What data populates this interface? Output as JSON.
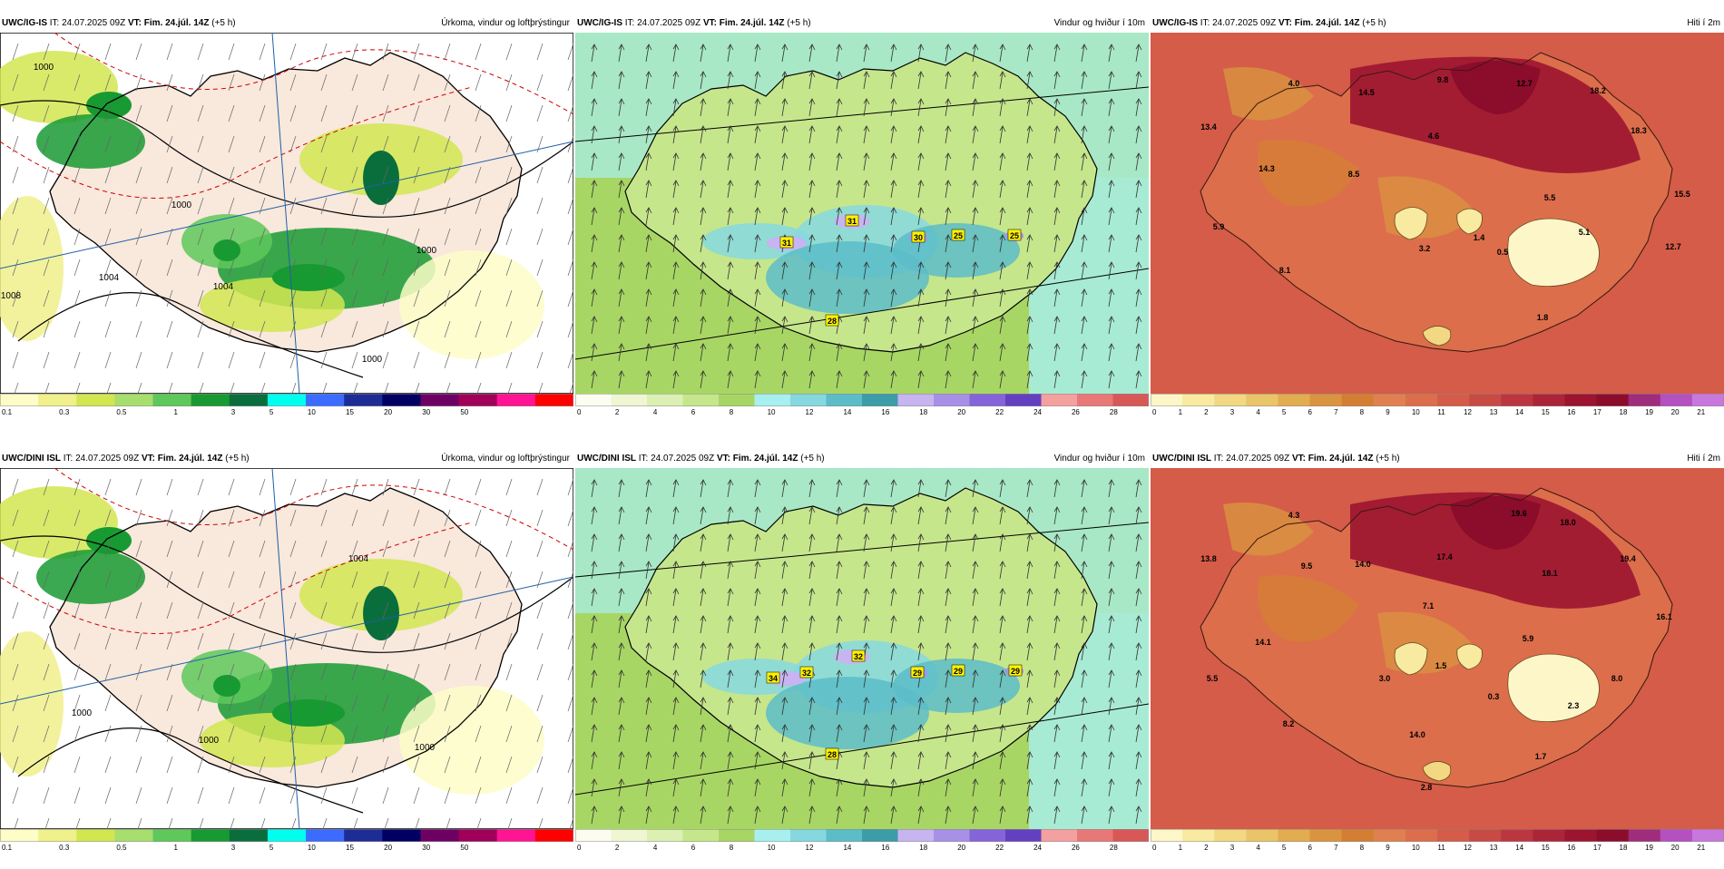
{
  "rows": [
    {
      "panels": [
        {
          "model": "UWC/IG-IS",
          "it_label": "IT:",
          "it_value": "24.07.2025 09Z",
          "vt_label": "VT:",
          "vt_value": "Fim. 24.júl. 14Z",
          "offset": "(+5 h)",
          "variable": "Úrkoma, vindur og loftþrýstingur",
          "colorbar": {
            "colors": [
              "#fdfdc8",
              "#f0f08c",
              "#d2e650",
              "#a8de6e",
              "#5ec85a",
              "#189a32",
              "#0a6e3c",
              "#00ffee",
              "#3c6cff",
              "#1e2c96",
              "#000064",
              "#6e0064",
              "#a0005a",
              "#ff1493",
              "#ff0000"
            ],
            "labels": [
              "0.1",
              "0.3",
              "0.5",
              "1",
              "3",
              "5",
              "10",
              "15",
              "20",
              "30",
              "50"
            ]
          },
          "map_labels": [
            "1000",
            "1008",
            "1004",
            "1000",
            "1004",
            "1000",
            "1000"
          ]
        },
        {
          "model": "UWC/IG-IS",
          "it_label": "IT:",
          "it_value": "24.07.2025 09Z",
          "vt_label": "VT:",
          "vt_value": "Fim. 24.júl. 14Z",
          "offset": "(+5 h)",
          "variable": "Vindur og hviður í 10m",
          "colorbar": {
            "colors": [
              "#fcfcf0",
              "#eef6d2",
              "#dcf0b4",
              "#c6e68c",
              "#a8d664",
              "#a8f0f0",
              "#86d8e0",
              "#5cbcc8",
              "#3c9ca8",
              "#c8b4f0",
              "#a890e6",
              "#8464d8",
              "#6440c0",
              "#f4a0a0",
              "#e87878",
              "#d85858"
            ],
            "labels": [
              "0",
              "2",
              "4",
              "6",
              "8",
              "10",
              "12",
              "14",
              "16",
              "18",
              "20",
              "22",
              "24",
              "26",
              "28"
            ]
          },
          "map_labels": [
            "31",
            "31",
            "30",
            "25",
            "25",
            "28"
          ]
        },
        {
          "model": "UWC/IG-IS",
          "it_label": "IT:",
          "it_value": "24.07.2025 09Z",
          "vt_label": "VT:",
          "vt_value": "Fim. 24.júl. 14Z",
          "offset": "(+5 h)",
          "variable": "Hiti í 2m",
          "colorbar": {
            "colors": [
              "#fdf6c8",
              "#f8eaa0",
              "#f2d882",
              "#eac468",
              "#e2ac50",
              "#da9440",
              "#d47e34",
              "#e08050",
              "#dc6e4c",
              "#d45c48",
              "#c84a44",
              "#bc3640",
              "#ac2438",
              "#9c1430",
              "#8c0c2c",
              "#a02c7c",
              "#b450c0",
              "#c878dc"
            ],
            "labels": [
              "0",
              "1",
              "2",
              "3",
              "4",
              "5",
              "6",
              "7",
              "8",
              "9",
              "10",
              "11",
              "12",
              "13",
              "14",
              "15",
              "16",
              "17",
              "18",
              "19",
              "20",
              "21"
            ]
          },
          "map_labels": [
            "4.0",
            "14.5",
            "9.8",
            "12.7",
            "18.2",
            "13.4",
            "4.6",
            "18.3",
            "14.3",
            "8.5",
            "5.5",
            "15.5",
            "5.9",
            "3.2",
            "1.4",
            "5.1",
            "0.5",
            "12.7",
            "8.1",
            "1.8"
          ]
        }
      ]
    },
    {
      "panels": [
        {
          "model": "UWC/DINI ISL",
          "it_label": "IT:",
          "it_value": "24.07.2025 09Z",
          "vt_label": "VT:",
          "vt_value": "Fim. 24.júl. 14Z",
          "offset": "(+5 h)",
          "variable": "Úrkoma, vindur og loftþrýstingur",
          "colorbar": {
            "colors": [
              "#fdfdc8",
              "#f0f08c",
              "#d2e650",
              "#a8de6e",
              "#5ec85a",
              "#189a32",
              "#0a6e3c",
              "#00ffee",
              "#3c6cff",
              "#1e2c96",
              "#000064",
              "#6e0064",
              "#a0005a",
              "#ff1493",
              "#ff0000"
            ],
            "labels": [
              "0.1",
              "0.3",
              "0.5",
              "1",
              "3",
              "5",
              "10",
              "15",
              "20",
              "30",
              "50"
            ]
          },
          "map_labels": [
            "1004",
            "1000",
            "1000",
            "1000"
          ]
        },
        {
          "model": "UWC/DINI ISL",
          "it_label": "IT:",
          "it_value": "24.07.2025 09Z",
          "vt_label": "VT:",
          "vt_value": "Fim. 24.júl. 14Z",
          "offset": "(+5 h)",
          "variable": "Vindur og hviður í 10m",
          "colorbar": {
            "colors": [
              "#fcfcf0",
              "#eef6d2",
              "#dcf0b4",
              "#c6e68c",
              "#a8d664",
              "#a8f0f0",
              "#86d8e0",
              "#5cbcc8",
              "#3c9ca8",
              "#c8b4f0",
              "#a890e6",
              "#8464d8",
              "#6440c0",
              "#f4a0a0",
              "#e87878",
              "#d85858"
            ],
            "labels": [
              "0",
              "2",
              "4",
              "6",
              "8",
              "10",
              "12",
              "14",
              "16",
              "18",
              "20",
              "22",
              "24",
              "26",
              "28"
            ]
          },
          "map_labels": [
            "34",
            "32",
            "32",
            "29",
            "29",
            "29",
            "28"
          ]
        },
        {
          "model": "UWC/DINI ISL",
          "it_label": "IT:",
          "it_value": "24.07.2025 09Z",
          "vt_label": "VT:",
          "vt_value": "Fim. 24.júl. 14Z",
          "offset": "(+5 h)",
          "variable": "Hiti í 2m",
          "colorbar": {
            "colors": [
              "#fdf6c8",
              "#f8eaa0",
              "#f2d882",
              "#eac468",
              "#e2ac50",
              "#da9440",
              "#d47e34",
              "#e08050",
              "#dc6e4c",
              "#d45c48",
              "#c84a44",
              "#bc3640",
              "#ac2438",
              "#9c1430",
              "#8c0c2c",
              "#a02c7c",
              "#b450c0",
              "#c878dc"
            ],
            "labels": [
              "0",
              "1",
              "2",
              "3",
              "4",
              "5",
              "6",
              "7",
              "8",
              "9",
              "10",
              "11",
              "12",
              "13",
              "14",
              "15",
              "16",
              "17",
              "18",
              "19",
              "20",
              "21"
            ]
          },
          "map_labels": [
            "4.3",
            "19.6",
            "18.0",
            "13.8",
            "9.5",
            "14.0",
            "17.4",
            "19.4",
            "18.1",
            "7.1",
            "16.1",
            "14.1",
            "5.9",
            "5.5",
            "1.5",
            "8.0",
            "3.0",
            "0.3",
            "2.3",
            "8.2",
            "14.0",
            "1.7",
            "2.8"
          ]
        }
      ]
    }
  ]
}
